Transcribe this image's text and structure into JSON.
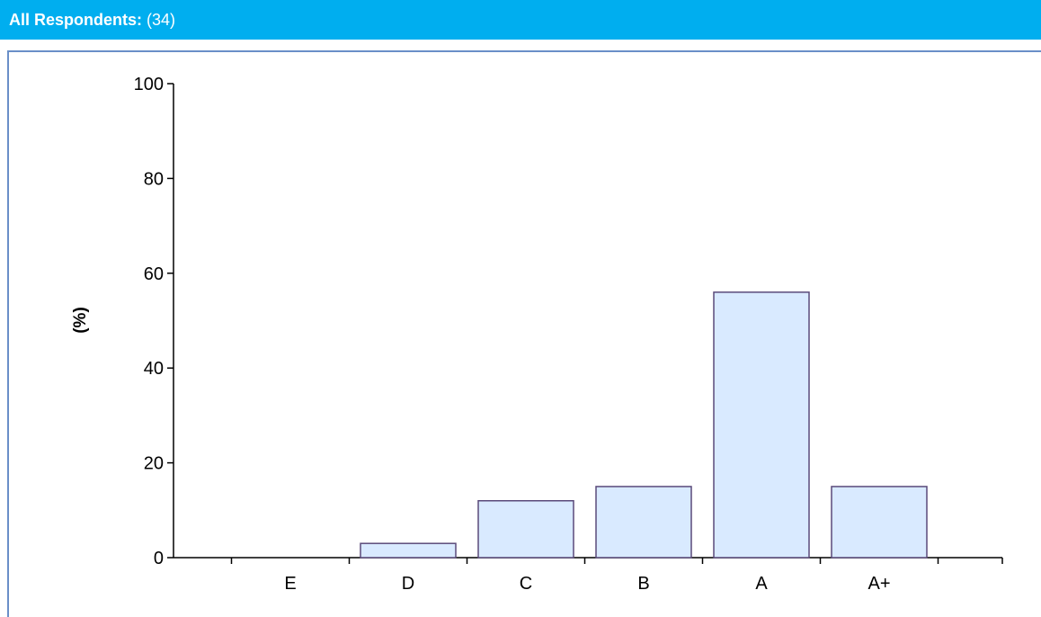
{
  "header": {
    "label": "All Respondents:",
    "count": "(34)"
  },
  "colors": {
    "header_bg": "#00aeef",
    "bar_fill": "#d9eaff",
    "bar_stroke": "#5a4a7a"
  },
  "chart_data": {
    "type": "bar",
    "title": "",
    "xlabel": "",
    "ylabel": "(%)",
    "categories": [
      "E",
      "D",
      "C",
      "B",
      "A",
      "A+"
    ],
    "values": [
      0,
      3,
      12,
      15,
      56,
      15
    ],
    "ylim": [
      0,
      100
    ],
    "yticks": [
      0,
      20,
      40,
      60,
      80,
      100
    ],
    "grid": false,
    "legend": "none"
  }
}
